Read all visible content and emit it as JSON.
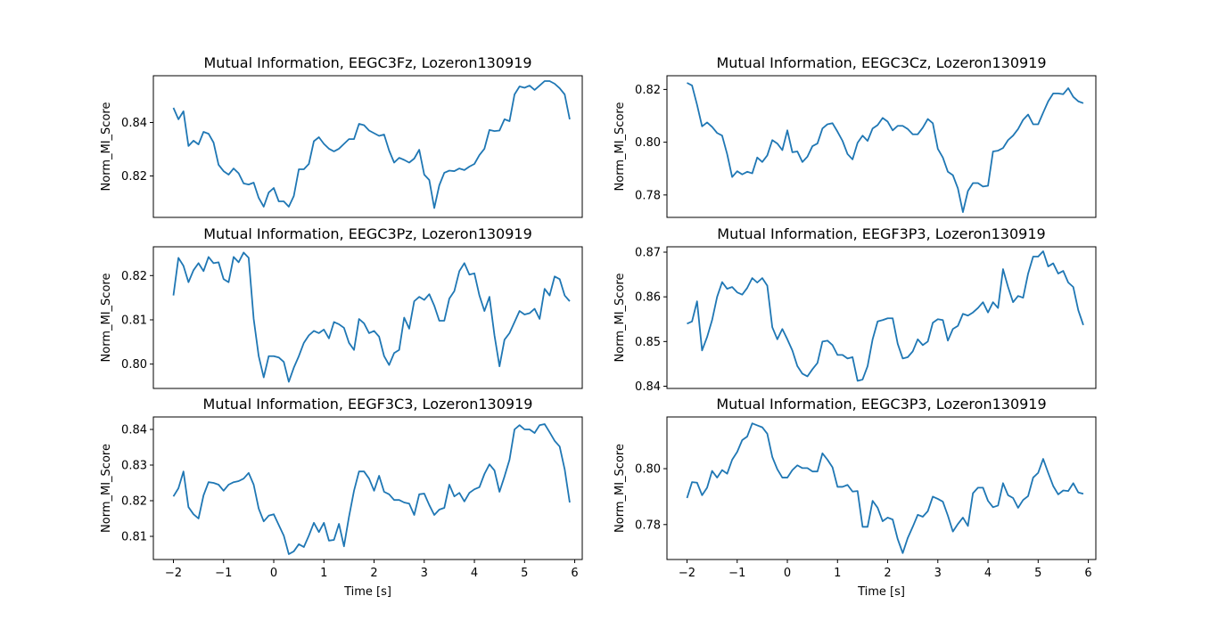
{
  "chart_data": [
    {
      "type": "line",
      "title": "Mutual Information, EEGC3Fz, Lozeron130919",
      "ylabel": "Norm_MI_Score",
      "xlabel": "",
      "xlim": [
        -2.4,
        6.15
      ],
      "ylim": [
        0.8045,
        0.8575
      ],
      "xticks": [],
      "yticks": [
        0.82,
        0.84
      ],
      "ytick_labels": [
        "0.82",
        "0.84"
      ],
      "x_start": -2.0,
      "x_step": 0.1,
      "values": [
        0.8455,
        0.8412,
        0.8442,
        0.8312,
        0.8332,
        0.8318,
        0.8365,
        0.8358,
        0.8325,
        0.8242,
        0.8218,
        0.8205,
        0.8228,
        0.821,
        0.8172,
        0.8168,
        0.8175,
        0.8118,
        0.8085,
        0.8138,
        0.8155,
        0.8105,
        0.8105,
        0.8085,
        0.8125,
        0.8225,
        0.8225,
        0.8245,
        0.833,
        0.8345,
        0.832,
        0.8302,
        0.8292,
        0.8302,
        0.832,
        0.8338,
        0.8338,
        0.8395,
        0.839,
        0.837,
        0.836,
        0.835,
        0.8355,
        0.8295,
        0.825,
        0.8268,
        0.826,
        0.825,
        0.8265,
        0.8298,
        0.8205,
        0.8185,
        0.808,
        0.8165,
        0.8212,
        0.822,
        0.8218,
        0.8228,
        0.8222,
        0.8235,
        0.8245,
        0.8278,
        0.8302,
        0.8372,
        0.8368,
        0.837,
        0.8412,
        0.8405,
        0.8505,
        0.8535,
        0.853,
        0.8538,
        0.8522,
        0.8538,
        0.8555,
        0.8555,
        0.8545,
        0.8528,
        0.8505,
        0.8412
      ]
    },
    {
      "type": "line",
      "title": "Mutual Information, EEGC3Cz, Lozeron130919",
      "ylabel": "Norm_MI_Score",
      "xlabel": "",
      "xlim": [
        -2.4,
        6.15
      ],
      "ylim": [
        0.7715,
        0.8252
      ],
      "xticks": [],
      "yticks": [
        0.78,
        0.8,
        0.82
      ],
      "ytick_labels": [
        "0.78",
        "0.80",
        "0.82"
      ],
      "x_start": -2.0,
      "x_step": 0.1,
      "values": [
        0.8225,
        0.8215,
        0.8142,
        0.806,
        0.8075,
        0.8058,
        0.8035,
        0.8025,
        0.7955,
        0.7868,
        0.789,
        0.7878,
        0.7888,
        0.7882,
        0.7942,
        0.7925,
        0.795,
        0.8008,
        0.7995,
        0.797,
        0.8045,
        0.7962,
        0.7965,
        0.7925,
        0.7945,
        0.7985,
        0.7995,
        0.8052,
        0.8068,
        0.8072,
        0.804,
        0.8005,
        0.7955,
        0.7935,
        0.7998,
        0.8025,
        0.8005,
        0.8052,
        0.8065,
        0.8092,
        0.8078,
        0.8045,
        0.8062,
        0.8062,
        0.805,
        0.803,
        0.803,
        0.8055,
        0.8088,
        0.8072,
        0.7975,
        0.7942,
        0.7888,
        0.7875,
        0.7825,
        0.7735,
        0.7815,
        0.7845,
        0.7845,
        0.7832,
        0.7835,
        0.7965,
        0.7968,
        0.7978,
        0.8008,
        0.8025,
        0.805,
        0.8085,
        0.8105,
        0.8068,
        0.8068,
        0.8112,
        0.8155,
        0.8185,
        0.8185,
        0.8182,
        0.8205,
        0.8172,
        0.8155,
        0.8148
      ]
    },
    {
      "type": "line",
      "title": "Mutual Information, EEGC3Pz, Lozeron130919",
      "ylabel": "Norm_MI_Score",
      "xlabel": "",
      "xlim": [
        -2.4,
        6.15
      ],
      "ylim": [
        0.7945,
        0.8265
      ],
      "xticks": [],
      "yticks": [
        0.8,
        0.81,
        0.82
      ],
      "ytick_labels": [
        "0.80",
        "0.81",
        "0.82"
      ],
      "x_start": -2.0,
      "x_step": 0.1,
      "values": [
        0.8155,
        0.824,
        0.8222,
        0.8185,
        0.8212,
        0.8228,
        0.821,
        0.8242,
        0.8228,
        0.823,
        0.8192,
        0.8185,
        0.8242,
        0.823,
        0.8252,
        0.824,
        0.8102,
        0.8018,
        0.797,
        0.8018,
        0.8018,
        0.8015,
        0.8005,
        0.796,
        0.7992,
        0.8018,
        0.8048,
        0.8065,
        0.8075,
        0.807,
        0.8078,
        0.8058,
        0.8095,
        0.809,
        0.8082,
        0.8048,
        0.8032,
        0.8102,
        0.8092,
        0.807,
        0.8075,
        0.8062,
        0.8018,
        0.7998,
        0.8025,
        0.8032,
        0.8105,
        0.808,
        0.8142,
        0.8152,
        0.8145,
        0.8158,
        0.8132,
        0.8098,
        0.8098,
        0.8148,
        0.8165,
        0.821,
        0.8228,
        0.8202,
        0.8205,
        0.8155,
        0.812,
        0.8152,
        0.8065,
        0.7995,
        0.8055,
        0.807,
        0.8095,
        0.812,
        0.8112,
        0.8115,
        0.8125,
        0.8102,
        0.817,
        0.8155,
        0.8198,
        0.8192,
        0.8155,
        0.8142
      ]
    },
    {
      "type": "line",
      "title": "Mutual Information, EEGF3P3, Lozeron130919",
      "ylabel": "Norm_MI_Score",
      "xlabel": "",
      "xlim": [
        -2.4,
        6.15
      ],
      "ylim": [
        0.8395,
        0.8712
      ],
      "xticks": [],
      "yticks": [
        0.84,
        0.85,
        0.86,
        0.87
      ],
      "ytick_labels": [
        "0.84",
        "0.85",
        "0.86",
        "0.87"
      ],
      "x_start": -2.0,
      "x_step": 0.1,
      "values": [
        0.854,
        0.8545,
        0.859,
        0.848,
        0.851,
        0.8548,
        0.86,
        0.8633,
        0.8618,
        0.8622,
        0.861,
        0.8605,
        0.862,
        0.8642,
        0.8632,
        0.8642,
        0.8625,
        0.8532,
        0.8505,
        0.8528,
        0.8505,
        0.848,
        0.8445,
        0.8428,
        0.8422,
        0.8438,
        0.8452,
        0.85,
        0.8502,
        0.8492,
        0.847,
        0.847,
        0.8462,
        0.8465,
        0.8412,
        0.8415,
        0.8445,
        0.8505,
        0.8545,
        0.8548,
        0.8552,
        0.8552,
        0.8495,
        0.8462,
        0.8465,
        0.8478,
        0.8505,
        0.8492,
        0.85,
        0.8542,
        0.855,
        0.8548,
        0.8502,
        0.8528,
        0.8535,
        0.8562,
        0.8558,
        0.8565,
        0.8575,
        0.8588,
        0.8565,
        0.8588,
        0.8575,
        0.8662,
        0.8622,
        0.8588,
        0.8602,
        0.8598,
        0.8652,
        0.869,
        0.869,
        0.8702,
        0.8668,
        0.8675,
        0.8652,
        0.8658,
        0.8632,
        0.8622,
        0.857,
        0.8537
      ]
    },
    {
      "type": "line",
      "title": "Mutual Information, EEGF3C3, Lozeron130919",
      "ylabel": "Norm_MI_Score",
      "xlabel": "Time [s]",
      "xlim": [
        -2.4,
        6.15
      ],
      "ylim": [
        0.8035,
        0.8435
      ],
      "xticks": [
        -2,
        -1,
        0,
        1,
        2,
        3,
        4,
        5,
        6
      ],
      "xtick_labels": [
        "−2",
        "−1",
        "0",
        "1",
        "2",
        "3",
        "4",
        "5",
        "6"
      ],
      "yticks": [
        0.81,
        0.82,
        0.83,
        0.84
      ],
      "ytick_labels": [
        "0.81",
        "0.82",
        "0.83",
        "0.84"
      ],
      "x_start": -2.0,
      "x_step": 0.1,
      "values": [
        0.8212,
        0.8235,
        0.8282,
        0.8182,
        0.8162,
        0.815,
        0.8215,
        0.8252,
        0.825,
        0.8245,
        0.8228,
        0.8245,
        0.8252,
        0.8255,
        0.8262,
        0.8278,
        0.8245,
        0.8178,
        0.8142,
        0.8158,
        0.8162,
        0.8132,
        0.8102,
        0.805,
        0.8058,
        0.8078,
        0.807,
        0.8102,
        0.8138,
        0.8112,
        0.8138,
        0.8088,
        0.809,
        0.8135,
        0.8072,
        0.8155,
        0.8228,
        0.8282,
        0.8282,
        0.8262,
        0.8228,
        0.827,
        0.8225,
        0.8218,
        0.8202,
        0.8202,
        0.8195,
        0.8192,
        0.816,
        0.8218,
        0.822,
        0.8188,
        0.816,
        0.8175,
        0.818,
        0.8245,
        0.8212,
        0.8222,
        0.8198,
        0.8222,
        0.8232,
        0.8238,
        0.8275,
        0.8302,
        0.8285,
        0.8225,
        0.8268,
        0.8315,
        0.84,
        0.8412,
        0.84,
        0.84,
        0.839,
        0.8412,
        0.8415,
        0.8392,
        0.8368,
        0.8352,
        0.8288,
        0.8195
      ]
    },
    {
      "type": "line",
      "title": "Mutual Information, EEGC3P3, Lozeron130919",
      "ylabel": "Norm_MI_Score",
      "xlabel": "Time [s]",
      "xlim": [
        -2.4,
        6.15
      ],
      "ylim": [
        0.7675,
        0.8185
      ],
      "xticks": [
        -2,
        -1,
        0,
        1,
        2,
        3,
        4,
        5,
        6
      ],
      "xtick_labels": [
        "−2",
        "−1",
        "0",
        "1",
        "2",
        "3",
        "4",
        "5",
        "6"
      ],
      "yticks": [
        0.78,
        0.8
      ],
      "ytick_labels": [
        "0.78",
        "0.80"
      ],
      "x_start": -2.0,
      "x_step": 0.1,
      "values": [
        0.7895,
        0.7952,
        0.795,
        0.7905,
        0.7932,
        0.7992,
        0.7968,
        0.7995,
        0.7982,
        0.8032,
        0.806,
        0.8102,
        0.8115,
        0.8162,
        0.8155,
        0.8148,
        0.8125,
        0.8042,
        0.7998,
        0.7968,
        0.7968,
        0.7995,
        0.8012,
        0.8002,
        0.8002,
        0.799,
        0.799,
        0.8055,
        0.8032,
        0.8005,
        0.7935,
        0.7935,
        0.7942,
        0.7918,
        0.792,
        0.7792,
        0.7792,
        0.7885,
        0.786,
        0.7812,
        0.7825,
        0.7818,
        0.7748,
        0.7698,
        0.7752,
        0.7792,
        0.7835,
        0.7828,
        0.7848,
        0.79,
        0.7892,
        0.7882,
        0.7832,
        0.7775,
        0.7802,
        0.7825,
        0.7795,
        0.7912,
        0.7932,
        0.7932,
        0.7885,
        0.7862,
        0.7868,
        0.7948,
        0.7905,
        0.7895,
        0.786,
        0.7888,
        0.7902,
        0.7968,
        0.7985,
        0.8035,
        0.7985,
        0.7938,
        0.7908,
        0.7922,
        0.792,
        0.7948,
        0.7915,
        0.791
      ]
    }
  ]
}
